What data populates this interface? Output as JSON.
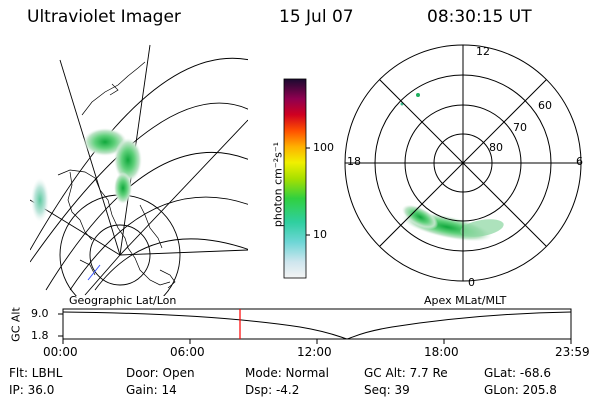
{
  "header": {
    "instrument": "Ultraviolet Imager",
    "date": "15 Jul 07",
    "time": "08:30:15 UT"
  },
  "left_panel": {
    "label": "Geographic Lat/Lon"
  },
  "right_panel": {
    "label": "Apex MLat/MLT",
    "mlt_labels": [
      "12",
      "18",
      "6",
      "0"
    ],
    "mlat_labels": [
      "60",
      "70",
      "80"
    ]
  },
  "colorbar": {
    "label": "photon cm⁻²s⁻¹",
    "tick_labels": [
      "100",
      "10"
    ],
    "scale": "log"
  },
  "orbit_plot": {
    "ylabel": "GC Alt",
    "ytick_labels": [
      "9.0",
      "1.8"
    ],
    "xtick_labels": [
      "00:00",
      "06:00",
      "12:00",
      "18:00",
      "23:59"
    ],
    "current_time_marker": "08:30:15",
    "marker_color": "#ff0000"
  },
  "status": {
    "row1": {
      "filter": "Flt: LBHL",
      "door": "Door: Open",
      "mode": "Mode: Normal",
      "gc_alt": "GC Alt: 7.7 Re",
      "glat": "GLat: -68.6"
    },
    "row2": {
      "ip": "IP: 36.0",
      "gain": "Gain: 14",
      "dsp": "Dsp:   -4.2",
      "seq": "Seq: 39",
      "glon": "GLon: 205.8"
    }
  },
  "colors": {
    "grid": "#000000",
    "aurora_low": "#cfe8d6",
    "aurora_mid": "#5fd07a",
    "aurora_high": "#20a040",
    "marker": "#ff0000"
  }
}
